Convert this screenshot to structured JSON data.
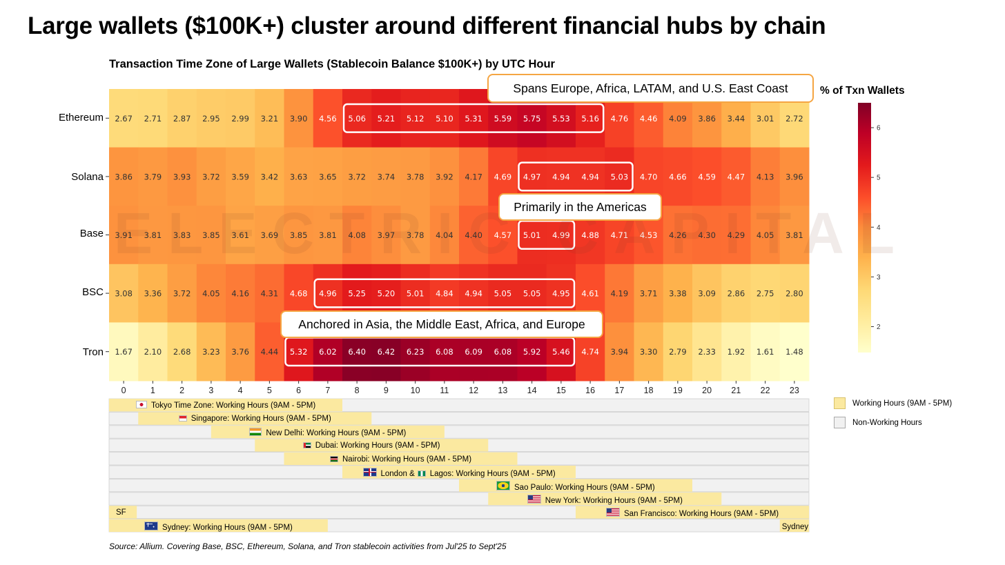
{
  "title": "Large wallets ($100K+) cluster around different financial hubs by chain",
  "chart_data": {
    "type": "heatmap",
    "title": "Transaction Time Zone of Large Wallets (Stablecoin Balance $100K+) by UTC Hour",
    "xlabel": "",
    "ylabel": "",
    "x": [
      0,
      1,
      2,
      3,
      4,
      5,
      6,
      7,
      8,
      9,
      10,
      11,
      12,
      13,
      14,
      15,
      16,
      17,
      18,
      19,
      20,
      21,
      22,
      23
    ],
    "rows": [
      "Ethereum",
      "Solana",
      "Base",
      "BSC",
      "Tron"
    ],
    "values": [
      [
        2.67,
        2.71,
        2.87,
        2.95,
        2.99,
        3.21,
        3.9,
        4.56,
        5.06,
        5.21,
        5.12,
        5.1,
        5.31,
        5.59,
        5.75,
        5.53,
        5.16,
        4.76,
        4.46,
        4.09,
        3.86,
        3.44,
        3.01,
        2.72
      ],
      [
        3.86,
        3.79,
        3.93,
        3.72,
        3.59,
        3.42,
        3.63,
        3.65,
        3.72,
        3.74,
        3.78,
        3.92,
        4.17,
        4.69,
        4.97,
        4.94,
        4.94,
        5.03,
        4.7,
        4.66,
        4.59,
        4.47,
        4.13,
        3.96
      ],
      [
        3.91,
        3.81,
        3.83,
        3.85,
        3.61,
        3.69,
        3.85,
        3.81,
        4.08,
        3.97,
        3.78,
        4.04,
        4.4,
        4.57,
        5.01,
        4.99,
        4.88,
        4.71,
        4.53,
        4.26,
        4.3,
        4.29,
        4.05,
        3.81
      ],
      [
        3.08,
        3.36,
        3.72,
        4.05,
        4.16,
        4.31,
        4.68,
        4.96,
        5.25,
        5.2,
        5.01,
        4.84,
        4.94,
        5.05,
        5.05,
        4.95,
        4.61,
        4.19,
        3.71,
        3.38,
        3.09,
        2.86,
        2.75,
        2.8
      ],
      [
        1.67,
        2.1,
        2.68,
        3.23,
        3.76,
        4.44,
        5.32,
        6.02,
        6.4,
        6.42,
        6.23,
        6.08,
        6.09,
        6.08,
        5.92,
        5.46,
        4.74,
        3.94,
        3.3,
        2.79,
        2.33,
        1.92,
        1.61,
        1.48
      ]
    ],
    "highlights": [
      {
        "row": 0,
        "from": 8,
        "to": 16
      },
      {
        "row": 1,
        "from": 14,
        "to": 17
      },
      {
        "row": 2,
        "from": 14,
        "to": 15
      },
      {
        "row": 3,
        "from": 7,
        "to": 15
      },
      {
        "row": 4,
        "from": 6,
        "to": 15
      }
    ],
    "colorbar": {
      "title": "% of Txn Wallets",
      "range": [
        1.48,
        6.5
      ],
      "ticks": [
        2,
        3,
        4,
        5,
        6
      ]
    }
  },
  "annotations": {
    "ethereum": "Spans Europe, Africa, LATAM, and U.S. East Coast",
    "base": "Primarily in the Americas",
    "tron": "Anchored in Asia, the Middle East, Africa, and Europe"
  },
  "watermark": "ELECTRIC CAPITAL",
  "timezones": [
    {
      "label": "Tokyo Time Zone: Working Hours (9AM - 5PM)",
      "flag": "jp",
      "start": 0,
      "end": 8
    },
    {
      "label": "Singapore: Working Hours (9AM - 5PM)",
      "flag": "sg",
      "start": 1,
      "end": 9
    },
    {
      "label": "New Delhi: Working Hours (9AM - 5PM)",
      "flag": "in",
      "start": 3.5,
      "end": 11.5
    },
    {
      "label": "Dubai: Working Hours (9AM - 5PM)",
      "flag": "ae",
      "start": 5,
      "end": 13
    },
    {
      "label": "Nairobi: Working Hours (9AM - 5PM)",
      "flag": "ke",
      "start": 6,
      "end": 14
    },
    {
      "label": "London &",
      "label2": "Lagos: Working Hours (9AM - 5PM)",
      "flag": "uk",
      "flag2": "ng",
      "start": 8,
      "end": 16
    },
    {
      "label": "Sao Paulo: Working Hours (9AM - 5PM)",
      "flag": "br",
      "start": 12,
      "end": 20
    },
    {
      "label": "New York: Working Hours (9AM - 5PM)",
      "flag": "us",
      "start": 13,
      "end": 21
    },
    {
      "label": "San Francisco: Working Hours (9AM - 5PM)",
      "flag": "us",
      "start": 16,
      "end": 24,
      "wrap_label": "SF"
    },
    {
      "label": "Sydney: Working Hours (9AM - 5PM)",
      "flag": "au",
      "start": 0,
      "end": 7.5,
      "wrap_label": "Sydney"
    }
  ],
  "legend": {
    "working": "Working Hours (9AM - 5PM)",
    "nonworking": "Non-Working Hours",
    "working_color": "#fbe9a0",
    "nonworking_color": "#f1f1f1"
  },
  "source": "Source: Allium. Covering Base, BSC, Ethereum, Solana, and Tron stablecoin activities from Jul'25 to Sept'25"
}
